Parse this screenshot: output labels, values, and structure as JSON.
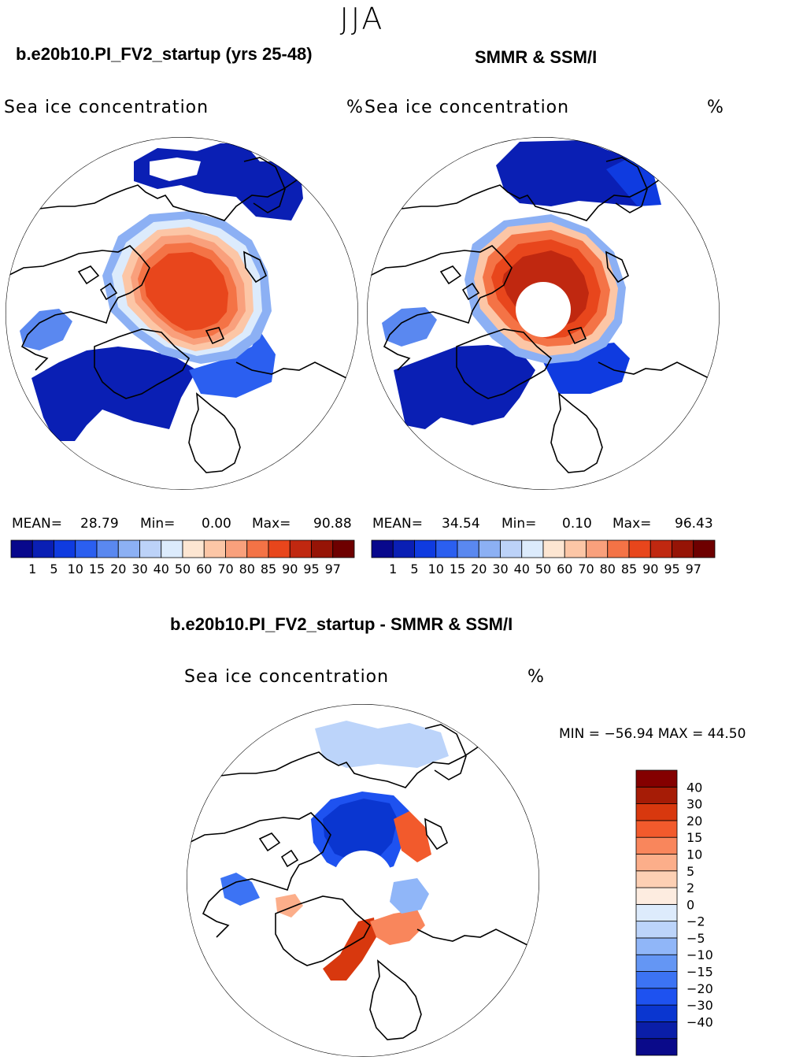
{
  "season": "JJA",
  "model_title": "b.e20b10.PI_FV2_startup (yrs 25-48)",
  "obs_title": "SMMR & SSM/I",
  "diff_title": "b.e20b10.PI_FV2_startup - SMMR & SSM/I",
  "field_name": "Sea ice concentration",
  "units": "%",
  "colors": {
    "abs": [
      "#08088c",
      "#0a1fb4",
      "#0f3be0",
      "#2b5ff0",
      "#5a88f0",
      "#8cb0f4",
      "#bcd2f8",
      "#dcebfc",
      "#fde6d2",
      "#fcc6a6",
      "#f9a07c",
      "#f47346",
      "#e8461c",
      "#c02810",
      "#961406",
      "#6e0000"
    ],
    "diff": [
      "#0a0a8a",
      "#0a1ea8",
      "#0a36d0",
      "#1e52f0",
      "#3c73f4",
      "#6496f4",
      "#90b6f8",
      "#bcd4fa",
      "#ddebfc",
      "#fdece0",
      "#fdd0b4",
      "#fcae8a",
      "#f9865c",
      "#f25a2c",
      "#d8380e",
      "#a61c06",
      "#840000"
    ]
  },
  "chart_data": [
    {
      "type": "heatmap",
      "panel": "model",
      "title": "b.e20b10.PI_FV2_startup (yrs 25-48)",
      "field": "Sea ice concentration",
      "units": "%",
      "projection": "north polar stereographic",
      "stats": {
        "mean_label": "MEAN=",
        "mean": "28.79",
        "min_label": "Min=",
        "min": "0.00",
        "max_label": "Max=",
        "max": "90.88"
      },
      "contour_levels": [
        "1",
        "5",
        "10",
        "15",
        "20",
        "30",
        "40",
        "50",
        "60",
        "70",
        "80",
        "85",
        "90",
        "95",
        "97"
      ]
    },
    {
      "type": "heatmap",
      "panel": "observations",
      "title": "SMMR & SSM/I",
      "field": "Sea ice concentration",
      "units": "%",
      "projection": "north polar stereographic",
      "stats": {
        "mean_label": "MEAN=",
        "mean": "34.54",
        "min_label": "Min=",
        "min": "0.10",
        "max_label": "Max=",
        "max": "96.43"
      },
      "contour_levels": [
        "1",
        "5",
        "10",
        "15",
        "20",
        "30",
        "40",
        "50",
        "60",
        "70",
        "80",
        "85",
        "90",
        "95",
        "97"
      ]
    },
    {
      "type": "heatmap",
      "panel": "difference",
      "title": "b.e20b10.PI_FV2_startup - SMMR & SSM/I",
      "field": "Sea ice concentration",
      "units": "%",
      "projection": "north polar stereographic",
      "stats_text": "MIN = −56.94 MAX =   44.50",
      "stats": {
        "min": -56.94,
        "max": 44.5
      },
      "contour_levels": [
        "40",
        "30",
        "20",
        "15",
        "10",
        "5",
        "2",
        "0",
        "−2",
        "−5",
        "−10",
        "−15",
        "−20",
        "−30",
        "−40"
      ]
    }
  ]
}
